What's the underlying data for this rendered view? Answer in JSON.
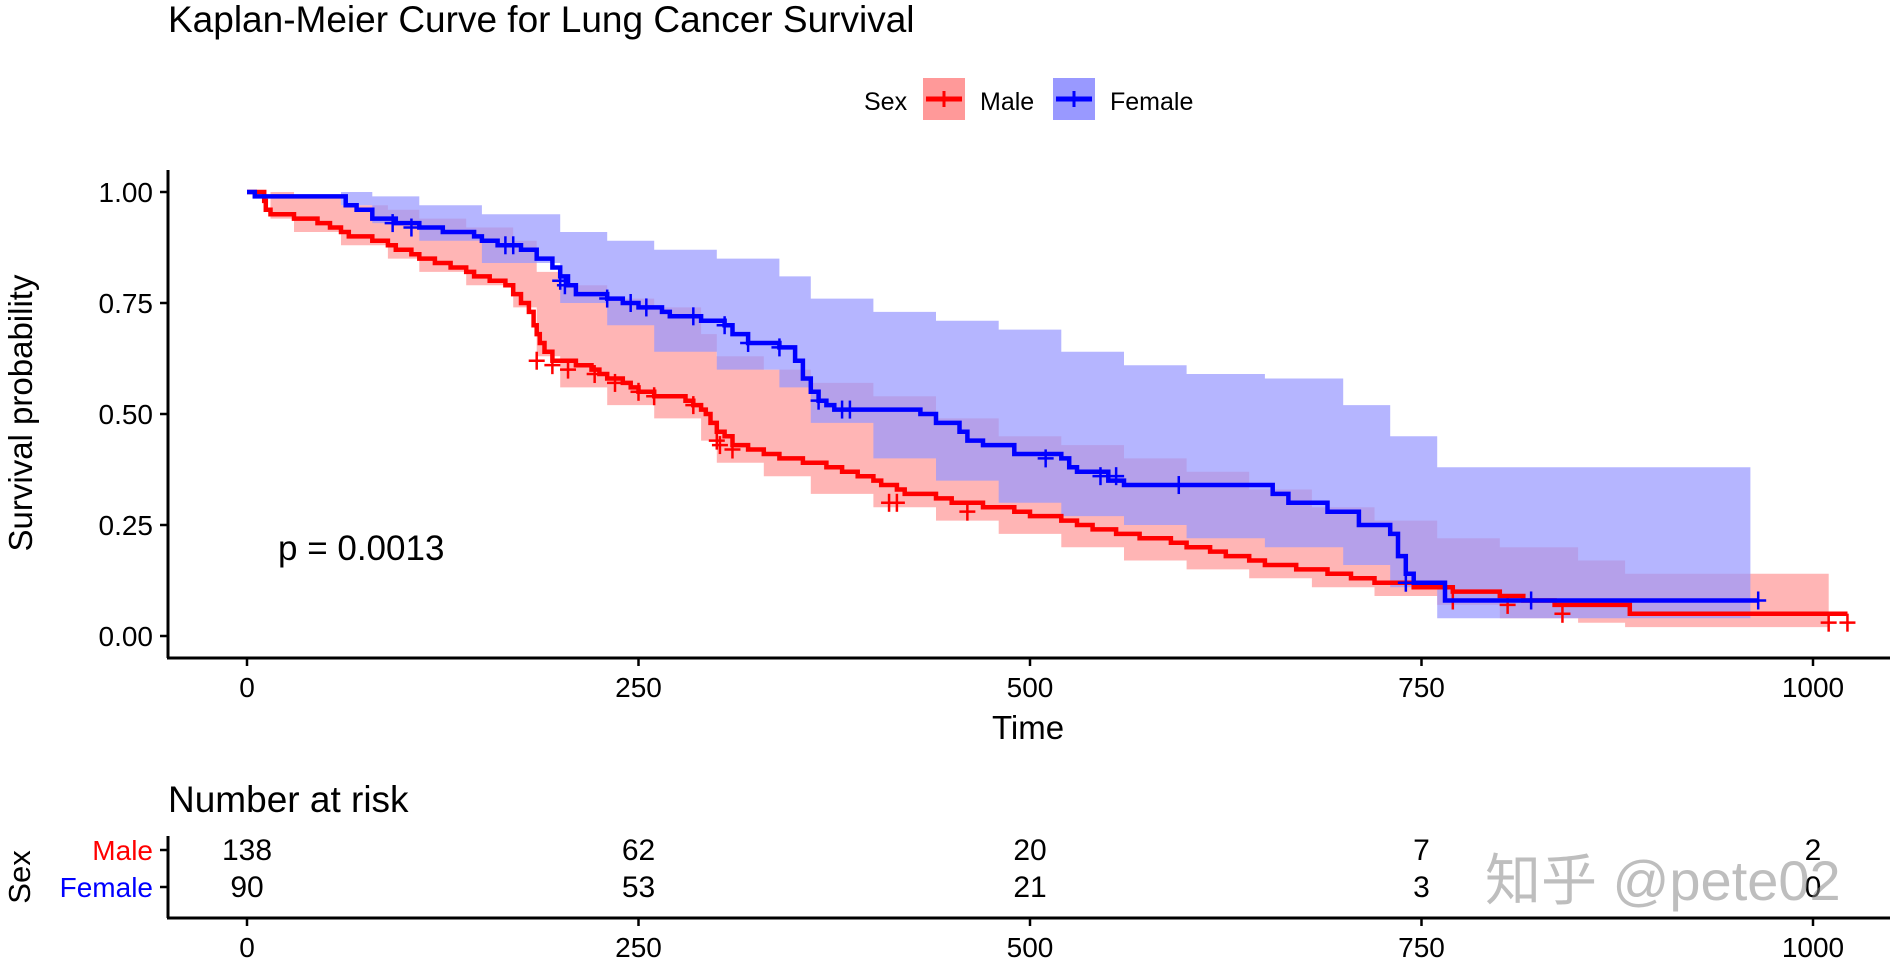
{
  "chart_data": {
    "type": "line",
    "subtype": "kaplan-meier-step",
    "title": "Kaplan-Meier Curve for Lung Cancer Survival",
    "xlabel": "Time",
    "ylabel": "Survival probability",
    "xlim": [
      -50,
      1050
    ],
    "ylim": [
      0,
      1
    ],
    "xticks": [
      0,
      250,
      500,
      750,
      1000
    ],
    "xtick_labels": [
      "0",
      "250",
      "500",
      "750",
      "1000"
    ],
    "yticks": [
      0,
      0.25,
      0.5,
      0.75,
      1.0
    ],
    "ytick_labels": [
      "0.00",
      "0.25",
      "0.50",
      "0.75",
      "1.00"
    ],
    "grid": false,
    "legend": {
      "title": "Sex",
      "placement": "top",
      "entries": [
        {
          "label": "Male",
          "color": "#FF0000",
          "fill": "#FF9999"
        },
        {
          "label": "Female",
          "color": "#0000FF",
          "fill": "#9999FF"
        }
      ]
    },
    "annotation": "p = 0.0013",
    "series": [
      {
        "name": "Male",
        "color": "#FF0000",
        "fill": "#FF9999",
        "steps": [
          [
            0,
            1.0
          ],
          [
            11,
            0.98
          ],
          [
            12,
            0.96
          ],
          [
            15,
            0.95
          ],
          [
            30,
            0.94
          ],
          [
            45,
            0.93
          ],
          [
            53,
            0.92
          ],
          [
            60,
            0.91
          ],
          [
            65,
            0.9
          ],
          [
            80,
            0.89
          ],
          [
            90,
            0.88
          ],
          [
            95,
            0.87
          ],
          [
            105,
            0.86
          ],
          [
            110,
            0.85
          ],
          [
            120,
            0.84
          ],
          [
            130,
            0.83
          ],
          [
            140,
            0.82
          ],
          [
            145,
            0.81
          ],
          [
            155,
            0.8
          ],
          [
            165,
            0.79
          ],
          [
            170,
            0.77
          ],
          [
            175,
            0.75
          ],
          [
            180,
            0.73
          ],
          [
            183,
            0.7
          ],
          [
            185,
            0.68
          ],
          [
            187,
            0.66
          ],
          [
            190,
            0.64
          ],
          [
            195,
            0.62
          ],
          [
            210,
            0.61
          ],
          [
            220,
            0.6
          ],
          [
            225,
            0.59
          ],
          [
            230,
            0.58
          ],
          [
            240,
            0.57
          ],
          [
            245,
            0.56
          ],
          [
            250,
            0.55
          ],
          [
            260,
            0.54
          ],
          [
            280,
            0.53
          ],
          [
            285,
            0.52
          ],
          [
            290,
            0.51
          ],
          [
            293,
            0.5
          ],
          [
            296,
            0.48
          ],
          [
            300,
            0.46
          ],
          [
            305,
            0.45
          ],
          [
            310,
            0.43
          ],
          [
            320,
            0.42
          ],
          [
            330,
            0.41
          ],
          [
            340,
            0.4
          ],
          [
            355,
            0.39
          ],
          [
            370,
            0.38
          ],
          [
            380,
            0.37
          ],
          [
            390,
            0.36
          ],
          [
            400,
            0.35
          ],
          [
            405,
            0.34
          ],
          [
            415,
            0.33
          ],
          [
            420,
            0.32
          ],
          [
            440,
            0.31
          ],
          [
            450,
            0.3
          ],
          [
            470,
            0.29
          ],
          [
            490,
            0.28
          ],
          [
            500,
            0.27
          ],
          [
            520,
            0.26
          ],
          [
            530,
            0.25
          ],
          [
            540,
            0.24
          ],
          [
            555,
            0.23
          ],
          [
            570,
            0.22
          ],
          [
            590,
            0.21
          ],
          [
            600,
            0.2
          ],
          [
            615,
            0.19
          ],
          [
            625,
            0.18
          ],
          [
            640,
            0.17
          ],
          [
            650,
            0.16
          ],
          [
            670,
            0.15
          ],
          [
            690,
            0.14
          ],
          [
            705,
            0.13
          ],
          [
            720,
            0.12
          ],
          [
            745,
            0.11
          ],
          [
            770,
            0.1
          ],
          [
            800,
            0.09
          ],
          [
            815,
            0.08
          ],
          [
            835,
            0.07
          ],
          [
            883,
            0.05
          ],
          [
            1022,
            0.05
          ]
        ],
        "ci_upper": [
          [
            0,
            1.0
          ],
          [
            15,
            1.0
          ],
          [
            30,
            0.99
          ],
          [
            60,
            0.97
          ],
          [
            90,
            0.96
          ],
          [
            110,
            0.94
          ],
          [
            140,
            0.92
          ],
          [
            170,
            0.89
          ],
          [
            185,
            0.82
          ],
          [
            200,
            0.79
          ],
          [
            230,
            0.76
          ],
          [
            260,
            0.74
          ],
          [
            290,
            0.68
          ],
          [
            300,
            0.63
          ],
          [
            330,
            0.6
          ],
          [
            360,
            0.57
          ],
          [
            400,
            0.54
          ],
          [
            440,
            0.49
          ],
          [
            480,
            0.45
          ],
          [
            520,
            0.43
          ],
          [
            560,
            0.4
          ],
          [
            600,
            0.37
          ],
          [
            640,
            0.33
          ],
          [
            680,
            0.29
          ],
          [
            720,
            0.26
          ],
          [
            760,
            0.22
          ],
          [
            800,
            0.2
          ],
          [
            850,
            0.17
          ],
          [
            880,
            0.14
          ],
          [
            1010,
            0.14
          ]
        ],
        "ci_lower": [
          [
            0,
            1.0
          ],
          [
            15,
            0.94
          ],
          [
            30,
            0.91
          ],
          [
            60,
            0.88
          ],
          [
            90,
            0.85
          ],
          [
            110,
            0.82
          ],
          [
            140,
            0.79
          ],
          [
            170,
            0.74
          ],
          [
            185,
            0.63
          ],
          [
            200,
            0.56
          ],
          [
            230,
            0.52
          ],
          [
            260,
            0.49
          ],
          [
            290,
            0.44
          ],
          [
            300,
            0.39
          ],
          [
            330,
            0.36
          ],
          [
            360,
            0.32
          ],
          [
            400,
            0.29
          ],
          [
            440,
            0.26
          ],
          [
            480,
            0.23
          ],
          [
            520,
            0.2
          ],
          [
            560,
            0.17
          ],
          [
            600,
            0.15
          ],
          [
            640,
            0.13
          ],
          [
            680,
            0.11
          ],
          [
            720,
            0.09
          ],
          [
            760,
            0.07
          ],
          [
            800,
            0.04
          ],
          [
            850,
            0.03
          ],
          [
            880,
            0.02
          ],
          [
            1010,
            0.02
          ]
        ],
        "censored": [
          [
            185,
            0.62
          ],
          [
            195,
            0.61
          ],
          [
            205,
            0.6
          ],
          [
            222,
            0.59
          ],
          [
            235,
            0.57
          ],
          [
            250,
            0.55
          ],
          [
            260,
            0.54
          ],
          [
            285,
            0.52
          ],
          [
            300,
            0.44
          ],
          [
            302,
            0.43
          ],
          [
            310,
            0.42
          ],
          [
            410,
            0.3
          ],
          [
            415,
            0.3
          ],
          [
            460,
            0.28
          ],
          [
            770,
            0.08
          ],
          [
            805,
            0.07
          ],
          [
            840,
            0.05
          ],
          [
            1010,
            0.03
          ],
          [
            1022,
            0.03
          ]
        ]
      },
      {
        "name": "Female",
        "color": "#0000FF",
        "fill": "#9999FF",
        "steps": [
          [
            0,
            1.0
          ],
          [
            5,
            0.99
          ],
          [
            60,
            0.99
          ],
          [
            63,
            0.97
          ],
          [
            70,
            0.96
          ],
          [
            80,
            0.94
          ],
          [
            95,
            0.93
          ],
          [
            110,
            0.92
          ],
          [
            125,
            0.91
          ],
          [
            145,
            0.9
          ],
          [
            150,
            0.89
          ],
          [
            160,
            0.88
          ],
          [
            175,
            0.87
          ],
          [
            185,
            0.85
          ],
          [
            195,
            0.83
          ],
          [
            200,
            0.81
          ],
          [
            205,
            0.79
          ],
          [
            210,
            0.77
          ],
          [
            230,
            0.76
          ],
          [
            240,
            0.75
          ],
          [
            250,
            0.74
          ],
          [
            265,
            0.73
          ],
          [
            270,
            0.72
          ],
          [
            290,
            0.71
          ],
          [
            305,
            0.7
          ],
          [
            310,
            0.68
          ],
          [
            320,
            0.66
          ],
          [
            340,
            0.65
          ],
          [
            350,
            0.62
          ],
          [
            355,
            0.58
          ],
          [
            360,
            0.55
          ],
          [
            365,
            0.53
          ],
          [
            370,
            0.52
          ],
          [
            375,
            0.51
          ],
          [
            430,
            0.5
          ],
          [
            440,
            0.48
          ],
          [
            455,
            0.46
          ],
          [
            460,
            0.44
          ],
          [
            470,
            0.43
          ],
          [
            490,
            0.41
          ],
          [
            520,
            0.4
          ],
          [
            525,
            0.38
          ],
          [
            530,
            0.37
          ],
          [
            550,
            0.35
          ],
          [
            560,
            0.34
          ],
          [
            655,
            0.32
          ],
          [
            665,
            0.3
          ],
          [
            690,
            0.28
          ],
          [
            710,
            0.25
          ],
          [
            730,
            0.23
          ],
          [
            735,
            0.18
          ],
          [
            740,
            0.14
          ],
          [
            745,
            0.12
          ],
          [
            765,
            0.08
          ],
          [
            965,
            0.08
          ]
        ],
        "ci_upper": [
          [
            0,
            1.0
          ],
          [
            60,
            1.0
          ],
          [
            80,
            0.99
          ],
          [
            110,
            0.97
          ],
          [
            150,
            0.95
          ],
          [
            200,
            0.91
          ],
          [
            230,
            0.89
          ],
          [
            260,
            0.87
          ],
          [
            300,
            0.85
          ],
          [
            340,
            0.81
          ],
          [
            360,
            0.76
          ],
          [
            400,
            0.73
          ],
          [
            440,
            0.71
          ],
          [
            480,
            0.69
          ],
          [
            520,
            0.64
          ],
          [
            560,
            0.61
          ],
          [
            600,
            0.59
          ],
          [
            650,
            0.58
          ],
          [
            700,
            0.52
          ],
          [
            730,
            0.45
          ],
          [
            760,
            0.38
          ],
          [
            960,
            0.27
          ]
        ],
        "ci_lower": [
          [
            0,
            1.0
          ],
          [
            60,
            0.97
          ],
          [
            80,
            0.93
          ],
          [
            110,
            0.89
          ],
          [
            150,
            0.84
          ],
          [
            200,
            0.75
          ],
          [
            230,
            0.7
          ],
          [
            260,
            0.64
          ],
          [
            300,
            0.6
          ],
          [
            340,
            0.56
          ],
          [
            360,
            0.48
          ],
          [
            400,
            0.4
          ],
          [
            440,
            0.35
          ],
          [
            480,
            0.3
          ],
          [
            520,
            0.27
          ],
          [
            560,
            0.25
          ],
          [
            600,
            0.22
          ],
          [
            650,
            0.2
          ],
          [
            700,
            0.16
          ],
          [
            730,
            0.11
          ],
          [
            760,
            0.04
          ],
          [
            960,
            0.02
          ]
        ],
        "censored": [
          [
            93,
            0.93
          ],
          [
            105,
            0.92
          ],
          [
            165,
            0.88
          ],
          [
            170,
            0.88
          ],
          [
            200,
            0.8
          ],
          [
            203,
            0.79
          ],
          [
            230,
            0.76
          ],
          [
            245,
            0.75
          ],
          [
            255,
            0.74
          ],
          [
            285,
            0.72
          ],
          [
            305,
            0.7
          ],
          [
            320,
            0.66
          ],
          [
            340,
            0.65
          ],
          [
            365,
            0.53
          ],
          [
            380,
            0.51
          ],
          [
            385,
            0.51
          ],
          [
            510,
            0.4
          ],
          [
            545,
            0.36
          ],
          [
            555,
            0.36
          ],
          [
            595,
            0.34
          ],
          [
            740,
            0.12
          ],
          [
            820,
            0.08
          ],
          [
            965,
            0.08
          ]
        ]
      }
    ]
  },
  "risk_table": {
    "title": "Number at risk",
    "strata_title": "Sex",
    "times": [
      "0",
      "250",
      "500",
      "750",
      "1000"
    ],
    "rows": [
      {
        "label": "Male",
        "color": "#FF0000",
        "values": [
          "138",
          "62",
          "20",
          "7",
          "2"
        ]
      },
      {
        "label": "Female",
        "color": "#0000FF",
        "values": [
          "90",
          "53",
          "21",
          "3",
          "0"
        ]
      }
    ]
  },
  "watermark": "知乎 @pete02"
}
